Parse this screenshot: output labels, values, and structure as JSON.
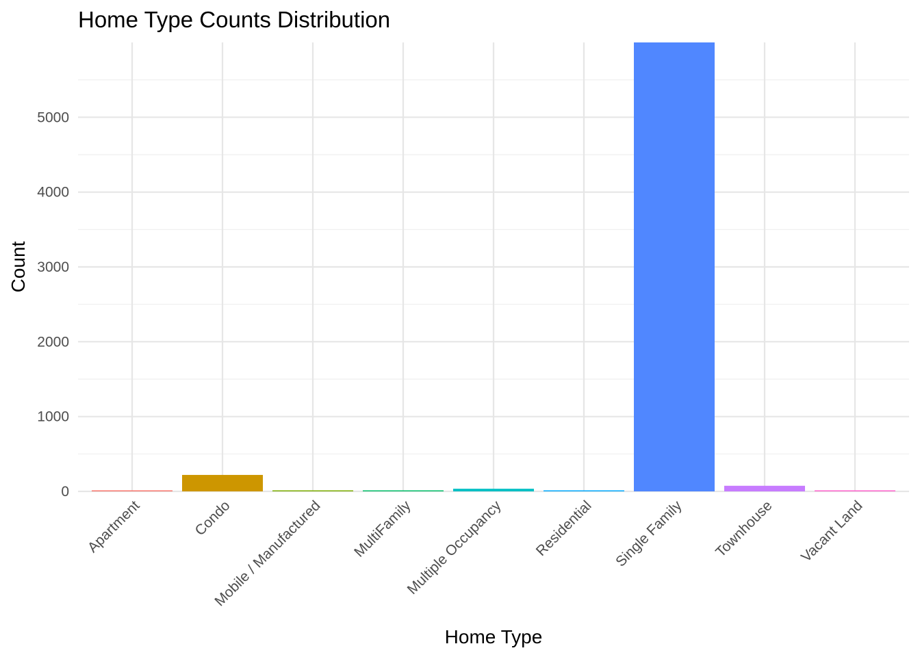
{
  "chart_data": {
    "type": "bar",
    "title": "Home Type Counts Distribution",
    "xlabel": "Home Type",
    "ylabel": "Count",
    "categories": [
      "Apartment",
      "Condo",
      "Mobile / Manufactured",
      "MultiFamily",
      "Multiple Occupancy",
      "Residential",
      "Single Family",
      "Townhouse",
      "Vacant Land"
    ],
    "values": [
      10,
      220,
      10,
      4,
      35,
      8,
      6000,
      75,
      3
    ],
    "colors": [
      "#F8766D",
      "#CD9600",
      "#7CAE00",
      "#00BE67",
      "#00BFC4",
      "#00A9FF",
      "#5087FF",
      "#C77CFF",
      "#FF61CC"
    ],
    "ylim": [
      0,
      6000
    ],
    "yticks": [
      0,
      1000,
      2000,
      3000,
      4000,
      5000
    ],
    "grid": true,
    "legend": "none"
  }
}
